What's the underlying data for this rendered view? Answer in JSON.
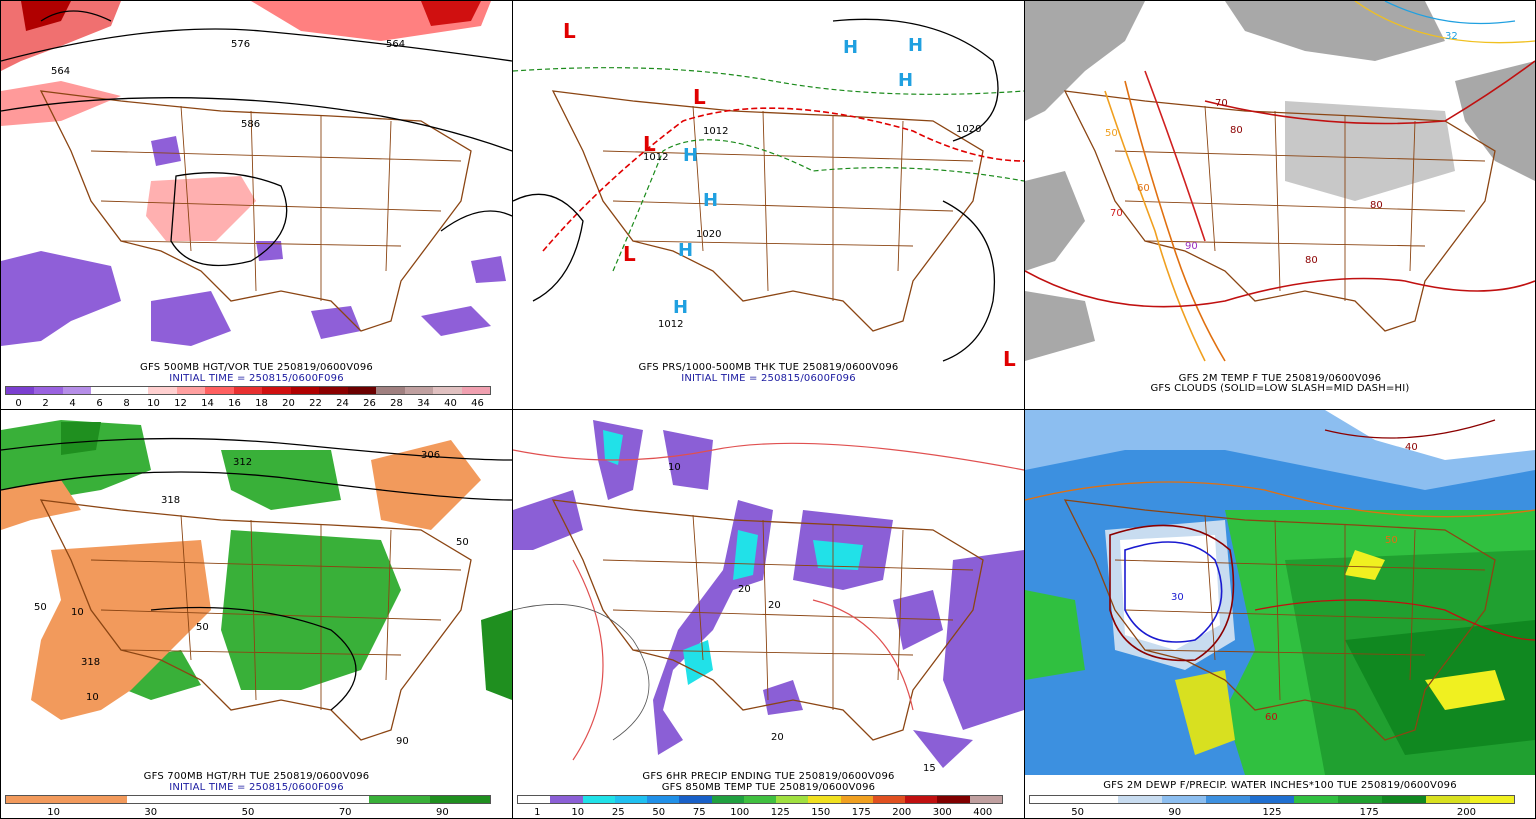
{
  "panels": [
    {
      "id": "p1",
      "caption1": "GFS 500MB HGT/VOR TUE 250819/0600V096",
      "caption2": "INITIAL TIME = 250815/0600F096",
      "colorbar": [
        "#7b3fd0",
        "#9a62e0",
        "#b68ee8",
        "#ffffff",
        "#ffffff",
        "#ffd0d0",
        "#ffa0a0",
        "#ff6060",
        "#e83030",
        "#d01010",
        "#b00000",
        "#8b0000",
        "#6b0000",
        "#a08080",
        "#c0a0a0",
        "#e0c0c0",
        "#f0a0b0"
      ],
      "ticks": [
        "0",
        "2",
        "4",
        "6",
        "8",
        "10",
        "12",
        "14",
        "16",
        "18",
        "20",
        "22",
        "24",
        "26",
        "28",
        "34",
        "40",
        "46"
      ],
      "labels": [
        "564",
        "576",
        "586",
        "564"
      ]
    },
    {
      "id": "p2",
      "caption1": "GFS PRS/1000-500MB THK TUE 250819/0600V096",
      "caption2": "INITIAL TIME = 250815/0600F096",
      "labels": [
        "1012",
        "1020",
        "1012",
        "1020",
        "1012",
        "1012"
      ]
    },
    {
      "id": "p3",
      "caption1": "GFS 2M TEMP F TUE 250819/0600V096",
      "caption2": "GFS CLOUDS (SOLID=LOW SLASH=MID DASH=HI)",
      "labels": [
        "70",
        "80",
        "80",
        "70",
        "60",
        "90",
        "80",
        "50",
        "32"
      ]
    },
    {
      "id": "p4",
      "caption1": "GFS 700MB HGT/RH TUE 250819/0600V096",
      "caption2": "INITIAL TIME = 250815/0600F096",
      "colorbar": [
        "#f29a5c",
        "#f29a5c",
        "#ffffff",
        "#ffffff",
        "#ffffff",
        "#ffffff",
        "#39b039",
        "#1f8f1f"
      ],
      "ticks": [
        "10",
        "30",
        "50",
        "70",
        "90"
      ],
      "labels": [
        "50",
        "312",
        "306",
        "10",
        "50",
        "318",
        "10",
        "50",
        "90",
        "318",
        "50"
      ]
    },
    {
      "id": "p5",
      "caption1": "GFS 6HR PRECIP ENDING TUE 250819/0600V096",
      "caption2": "GFS 850MB TEMP TUE 250819/0600V096",
      "colorbar": [
        "#ffffff",
        "#8b5fd6",
        "#21e1e8",
        "#20c0f0",
        "#2090e8",
        "#1860c8",
        "#20a040",
        "#40c040",
        "#a0e040",
        "#f0e020",
        "#f0a020",
        "#e05020",
        "#c01010",
        "#800000",
        "#c0a0a0"
      ],
      "ticks": [
        "1",
        "10",
        "25",
        "50",
        "75",
        "100",
        "125",
        "150",
        "175",
        "200",
        "300",
        "400"
      ],
      "labels": [
        "10",
        "20",
        "20",
        "15",
        "20"
      ]
    },
    {
      "id": "p6",
      "caption1": "GFS 2M DEWP F/PRECIP. WATER INCHES*100 TUE 250819/0600V096",
      "colorbar": [
        "#ffffff",
        "#ffffff",
        "#c8dcf0",
        "#8cbef0",
        "#3c90e0",
        "#1f6fd0",
        "#30c040",
        "#20a030",
        "#108820",
        "#d8e020",
        "#f0f020"
      ],
      "ticks": [
        "50",
        "90",
        "125",
        "175",
        "200"
      ],
      "labels": [
        "40",
        "30",
        "50",
        "60"
      ]
    }
  ]
}
